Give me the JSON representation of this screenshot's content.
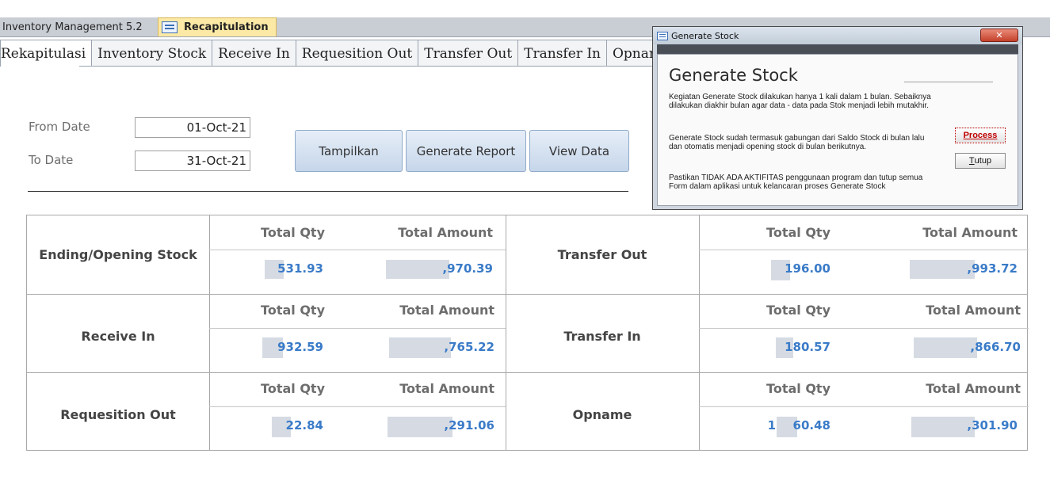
{
  "doc_tabs": [
    {
      "label": "Inventory Management 5.2"
    },
    {
      "label": "Recapitulation"
    }
  ],
  "tabs": [
    "Rekapitulasi",
    "Inventory Stock",
    "Receive In",
    "Requesition Out",
    "Transfer Out",
    "Transfer In",
    "Opname"
  ],
  "filters": {
    "from_label": "From Date",
    "from_value": "01-Oct-21",
    "to_label": "To Date",
    "to_value": "31-Oct-21"
  },
  "buttons": {
    "tampilkan": "Tampilkan",
    "generate_report": "Generate Report",
    "view_data": "View Data"
  },
  "summary": {
    "qty_header": "Total Qty",
    "amount_header": "Total Amount",
    "left": [
      {
        "label": "Ending/Opening Stock",
        "qty": "531.93",
        "amount": ",970.39"
      },
      {
        "label": "Receive In",
        "qty": "932.59",
        "amount": ",765.22"
      },
      {
        "label": "Requesition Out",
        "qty": "22.84",
        "amount": ",291.06"
      }
    ],
    "right": [
      {
        "label": "Transfer Out",
        "qty": "196.00",
        "amount": ",993.72"
      },
      {
        "label": "Transfer In",
        "qty": "180.57",
        "amount": ",866.70"
      },
      {
        "label": "Opname",
        "qty_prefix": "1",
        "qty": "60.48",
        "amount": ",301.90"
      }
    ]
  },
  "dialog": {
    "window_title": "Generate Stock",
    "close_glyph": "✕",
    "heading": "Generate Stock",
    "paragraph1": "Kegiatan Generate Stock dilakukan hanya 1 kali dalam 1 bulan. Sebaiknya dilakukan diakhir bulan agar data - data pada Stok menjadi lebih mutakhir.",
    "paragraph2": "Generate Stock sudah termasuk gabungan dari Saldo Stock di bulan lalu dan otomatis menjadi opening stock di bulan berikutnya.",
    "paragraph3": "Pastikan TIDAK ADA AKTIFITAS penggunaan program dan tutup semua Form dalam aplikasi untuk kelancaran proses Generate Stock",
    "process_label": "Process",
    "tutup_first": "T",
    "tutup_rest": "utup"
  }
}
